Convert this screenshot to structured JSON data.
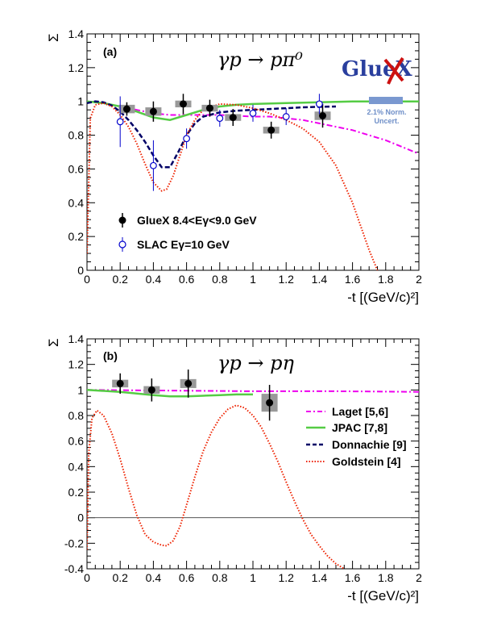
{
  "chart_data": [
    {
      "type": "scatter",
      "panel": "(a)",
      "reaction": "γp → pπ⁰",
      "xlabel": "-t [(GeV/c)²]",
      "ylabel": "Σ",
      "xlim": [
        0,
        2
      ],
      "ylim": [
        0,
        1.4
      ],
      "x_ticks": [
        "0",
        "0.2",
        "0.4",
        "0.6",
        "0.8",
        "1",
        "1.2",
        "1.4",
        "1.6",
        "1.8",
        "2"
      ],
      "y_ticks": [
        "0",
        "0.2",
        "0.4",
        "0.6",
        "0.8",
        "1",
        "1.2",
        "1.4"
      ],
      "norm_note": [
        "2.1% Norm.",
        "Uncert."
      ],
      "logo_text": "GlueX",
      "series": [
        {
          "name": "GlueX 8.4<Eγ<9.0 GeV",
          "color": "#000000",
          "marker": "filled-circle",
          "points": [
            {
              "x": 0.24,
              "y": 0.955,
              "err": 0.04,
              "sys": 0.025
            },
            {
              "x": 0.4,
              "y": 0.94,
              "err": 0.06,
              "sys": 0.025
            },
            {
              "x": 0.58,
              "y": 0.985,
              "err": 0.06,
              "sys": 0.02
            },
            {
              "x": 0.74,
              "y": 0.96,
              "err": 0.05,
              "sys": 0.02
            },
            {
              "x": 0.88,
              "y": 0.905,
              "err": 0.05,
              "sys": 0.02
            },
            {
              "x": 1.11,
              "y": 0.83,
              "err": 0.05,
              "sys": 0.02
            },
            {
              "x": 1.42,
              "y": 0.915,
              "err": 0.07,
              "sys": 0.025
            }
          ]
        },
        {
          "name": "SLAC Eγ=10 GeV",
          "color": "#0000cc",
          "marker": "open-circle",
          "points": [
            {
              "x": 0.2,
              "y": 0.88,
              "err": 0.15
            },
            {
              "x": 0.4,
              "y": 0.62,
              "err": 0.15
            },
            {
              "x": 0.6,
              "y": 0.78,
              "err": 0.06
            },
            {
              "x": 0.8,
              "y": 0.9,
              "err": 0.05
            },
            {
              "x": 1.0,
              "y": 0.93,
              "err": 0.05
            },
            {
              "x": 1.2,
              "y": 0.91,
              "err": 0.05
            },
            {
              "x": 1.4,
              "y": 0.985,
              "err": 0.06
            }
          ]
        },
        {
          "name": "Laget [5,6]",
          "color": "#ee00ee",
          "style": "dashdot",
          "x": [
            0,
            0.1,
            0.2,
            0.3,
            0.4,
            0.5,
            0.6,
            0.7,
            0.8,
            0.9,
            1.0,
            1.1,
            1.2,
            1.3,
            1.4,
            1.5,
            1.6,
            1.7,
            1.8,
            1.9,
            2.0
          ],
          "y": [
            1.0,
            0.99,
            0.97,
            0.95,
            0.93,
            0.92,
            0.92,
            0.92,
            0.92,
            0.915,
            0.91,
            0.91,
            0.9,
            0.89,
            0.87,
            0.85,
            0.83,
            0.8,
            0.77,
            0.73,
            0.69
          ]
        },
        {
          "name": "JPAC [7,8]",
          "color": "#55cc44",
          "style": "solid",
          "x": [
            0,
            0.1,
            0.2,
            0.3,
            0.4,
            0.5,
            0.6,
            0.7,
            0.8,
            0.9,
            1.0,
            1.2,
            1.4,
            1.6,
            1.8,
            2.0
          ],
          "y": [
            1.0,
            0.99,
            0.97,
            0.94,
            0.905,
            0.89,
            0.92,
            0.95,
            0.97,
            0.98,
            0.985,
            0.99,
            0.995,
            1.0,
            1.0,
            1.0
          ]
        },
        {
          "name": "Donnachie [9]",
          "color": "#000066",
          "style": "dashed",
          "x": [
            0,
            0.05,
            0.1,
            0.15,
            0.2,
            0.25,
            0.3,
            0.35,
            0.4,
            0.45,
            0.5,
            0.55,
            0.6,
            0.65,
            0.7,
            0.8,
            0.9,
            1.0,
            1.1,
            1.2,
            1.3,
            1.4,
            1.5
          ],
          "y": [
            0.99,
            1.0,
            0.995,
            0.975,
            0.94,
            0.89,
            0.83,
            0.76,
            0.68,
            0.61,
            0.61,
            0.7,
            0.8,
            0.87,
            0.91,
            0.935,
            0.945,
            0.95,
            0.955,
            0.96,
            0.965,
            0.968,
            0.97
          ]
        },
        {
          "name": "Goldstein [4]",
          "color": "#ee2200",
          "style": "dotted",
          "x": [
            0,
            0.02,
            0.05,
            0.1,
            0.15,
            0.2,
            0.25,
            0.3,
            0.35,
            0.4,
            0.45,
            0.48,
            0.52,
            0.56,
            0.6,
            0.65,
            0.7,
            0.8,
            0.9,
            1.0,
            1.1,
            1.2,
            1.3,
            1.4,
            1.5,
            1.6,
            1.7,
            1.75
          ],
          "y": [
            0.1,
            0.9,
            0.98,
            0.99,
            0.97,
            0.92,
            0.85,
            0.75,
            0.63,
            0.52,
            0.47,
            0.48,
            0.56,
            0.68,
            0.8,
            0.89,
            0.95,
            0.985,
            0.98,
            0.96,
            0.93,
            0.89,
            0.84,
            0.76,
            0.62,
            0.4,
            0.12,
            0.0
          ]
        }
      ],
      "legend": [
        "GlueX 8.4<Eγ<9.0 GeV",
        "SLAC Eγ=10 GeV"
      ]
    },
    {
      "type": "scatter",
      "panel": "(b)",
      "reaction": "γp → pη",
      "xlabel": "-t [(GeV/c)²]",
      "ylabel": "Σ",
      "xlim": [
        0,
        2
      ],
      "ylim": [
        -0.4,
        1.4
      ],
      "x_ticks": [
        "0",
        "0.2",
        "0.4",
        "0.6",
        "0.8",
        "1",
        "1.2",
        "1.4",
        "1.6",
        "1.8",
        "2"
      ],
      "y_ticks": [
        "-0.4",
        "-0.2",
        "0",
        "0.2",
        "0.4",
        "0.6",
        "0.8",
        "1",
        "1.2",
        "1.4"
      ],
      "series": [
        {
          "name": "GlueX",
          "color": "#000000",
          "marker": "filled-circle",
          "points": [
            {
              "x": 0.2,
              "y": 1.05,
              "err": 0.08,
              "sys": 0.03
            },
            {
              "x": 0.39,
              "y": 1.0,
              "err": 0.09,
              "sys": 0.03
            },
            {
              "x": 0.61,
              "y": 1.05,
              "err": 0.11,
              "sys": 0.035
            },
            {
              "x": 1.1,
              "y": 0.9,
              "err": 0.14,
              "sys": 0.07
            }
          ]
        },
        {
          "name": "Laget [5,6]",
          "color": "#ee00ee",
          "style": "dashdot",
          "x": [
            0,
            0.5,
            1.0,
            1.5,
            2.0
          ],
          "y": [
            1.0,
            0.995,
            0.99,
            0.99,
            0.985
          ]
        },
        {
          "name": "JPAC [7,8]",
          "color": "#55cc44",
          "style": "solid",
          "x": [
            0,
            0.2,
            0.4,
            0.5,
            0.6,
            0.7,
            0.8,
            0.9,
            1.0
          ],
          "y": [
            1.0,
            0.985,
            0.96,
            0.95,
            0.95,
            0.955,
            0.96,
            0.965,
            0.965
          ]
        },
        {
          "name": "Goldstein [4]",
          "color": "#ee2200",
          "style": "dotted",
          "x": [
            0,
            0.01,
            0.03,
            0.06,
            0.1,
            0.15,
            0.2,
            0.25,
            0.3,
            0.35,
            0.4,
            0.45,
            0.48,
            0.52,
            0.56,
            0.6,
            0.65,
            0.7,
            0.75,
            0.8,
            0.85,
            0.9,
            0.95,
            1.0,
            1.05,
            1.1,
            1.15,
            1.2,
            1.25,
            1.3,
            1.35,
            1.4,
            1.45,
            1.5,
            1.55
          ],
          "y": [
            -0.25,
            0.5,
            0.78,
            0.84,
            0.8,
            0.66,
            0.46,
            0.23,
            0.02,
            -0.13,
            -0.19,
            -0.215,
            -0.22,
            -0.18,
            -0.07,
            0.1,
            0.32,
            0.52,
            0.67,
            0.78,
            0.85,
            0.88,
            0.86,
            0.8,
            0.71,
            0.58,
            0.44,
            0.28,
            0.13,
            -0.01,
            -0.13,
            -0.22,
            -0.3,
            -0.36,
            -0.4
          ]
        }
      ],
      "legend": [
        "Laget [5,6]",
        "JPAC [7,8]",
        "Donnachie [9]",
        "Goldstein [4]"
      ]
    }
  ]
}
